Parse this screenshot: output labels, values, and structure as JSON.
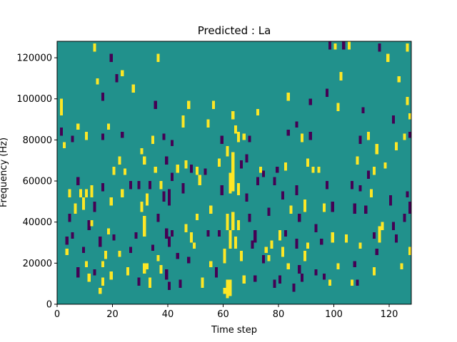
{
  "chart_data": {
    "type": "heatmap",
    "title": "Predicted : La",
    "xlabel": "Time step",
    "ylabel": "Frequency (Hz)",
    "xlim": [
      0,
      128
    ],
    "ylim": [
      0,
      128000
    ],
    "xticks": [
      0,
      20,
      40,
      60,
      80,
      100,
      120
    ],
    "yticks": [
      0,
      20000,
      40000,
      60000,
      80000,
      100000,
      120000
    ],
    "x_tick_labels": [
      "0",
      "20",
      "40",
      "60",
      "80",
      "100",
      "120"
    ],
    "y_tick_labels": [
      "0",
      "20000",
      "40000",
      "60000",
      "80000",
      "100000",
      "120000"
    ],
    "grid": false,
    "colormap": "viridis",
    "colors": {
      "low": "#440154",
      "mid": "#21918c",
      "high": "#fde725"
    },
    "background_value": 0,
    "value_levels": [
      -1,
      0,
      1
    ],
    "n_time_steps": 128,
    "n_freq_bins": 128,
    "bin_width_hz": 1000,
    "cells_note": "Listed cells are [time_step, frequency_bin_start, n_bins, value]; all other cells have the background value 0.",
    "cells": [
      [
        1,
        92,
        8,
        1
      ],
      [
        1,
        82,
        4,
        -1
      ],
      [
        2,
        76,
        3,
        1
      ],
      [
        3,
        29,
        4,
        -1
      ],
      [
        3,
        24,
        3,
        1
      ],
      [
        4,
        52,
        4,
        1
      ],
      [
        4,
        40,
        4,
        -1
      ],
      [
        5,
        79,
        3,
        -1
      ],
      [
        5,
        32,
        3,
        -1
      ],
      [
        6,
        44,
        5,
        1
      ],
      [
        7,
        85,
        3,
        1
      ],
      [
        7,
        58,
        4,
        -1
      ],
      [
        7,
        13,
        5,
        -1
      ],
      [
        8,
        52,
        4,
        1
      ],
      [
        9,
        46,
        6,
        1
      ],
      [
        9,
        25,
        3,
        -1
      ],
      [
        10,
        80,
        4,
        1
      ],
      [
        10,
        52,
        4,
        1
      ],
      [
        10,
        18,
        3,
        1
      ],
      [
        11,
        36,
        5,
        -1
      ],
      [
        11,
        11,
        4,
        1
      ],
      [
        12,
        52,
        6,
        1
      ],
      [
        12,
        38,
        3,
        1
      ],
      [
        13,
        123,
        4,
        1
      ],
      [
        13,
        45,
        5,
        -1
      ],
      [
        13,
        14,
        3,
        -1
      ],
      [
        14,
        107,
        3,
        1
      ],
      [
        15,
        28,
        5,
        -1
      ],
      [
        15,
        5,
        3,
        1
      ],
      [
        16,
        99,
        4,
        -1
      ],
      [
        16,
        80,
        3,
        -1
      ],
      [
        16,
        55,
        4,
        -1
      ],
      [
        16,
        18,
        3,
        1
      ],
      [
        16,
        9,
        4,
        1
      ],
      [
        17,
        22,
        4,
        1
      ],
      [
        18,
        85,
        3,
        1
      ],
      [
        18,
        34,
        3,
        1
      ],
      [
        19,
        118,
        4,
        -1
      ],
      [
        19,
        48,
        4,
        1
      ],
      [
        19,
        12,
        4,
        1
      ],
      [
        20,
        63,
        4,
        1
      ],
      [
        20,
        31,
        3,
        -1
      ],
      [
        21,
        108,
        4,
        -1
      ],
      [
        22,
        68,
        4,
        1
      ],
      [
        22,
        23,
        3,
        1
      ],
      [
        23,
        111,
        3,
        1
      ],
      [
        23,
        81,
        3,
        -1
      ],
      [
        23,
        52,
        4,
        1
      ],
      [
        24,
        63,
        3,
        1
      ],
      [
        25,
        14,
        4,
        1
      ],
      [
        26,
        56,
        4,
        -1
      ],
      [
        26,
        25,
        3,
        -1
      ],
      [
        27,
        103,
        4,
        1
      ],
      [
        28,
        32,
        3,
        -1
      ],
      [
        29,
        56,
        4,
        -1
      ],
      [
        29,
        9,
        4,
        -1
      ],
      [
        30,
        73,
        3,
        1
      ],
      [
        30,
        45,
        5,
        1
      ],
      [
        31,
        68,
        4,
        1
      ],
      [
        31,
        33,
        10,
        1
      ],
      [
        31,
        15,
        5,
        1
      ],
      [
        32,
        48,
        6,
        1
      ],
      [
        32,
        17,
        3,
        1
      ],
      [
        33,
        8,
        5,
        1
      ],
      [
        33,
        56,
        4,
        -1
      ],
      [
        34,
        78,
        4,
        1
      ],
      [
        34,
        26,
        3,
        -1
      ],
      [
        35,
        95,
        4,
        -1
      ],
      [
        35,
        64,
        3,
        1
      ],
      [
        36,
        40,
        4,
        -1
      ],
      [
        36,
        21,
        3,
        1
      ],
      [
        36,
        118,
        4,
        1
      ],
      [
        37,
        56,
        4,
        1
      ],
      [
        37,
        15,
        4,
        1
      ],
      [
        38,
        80,
        3,
        -1
      ],
      [
        38,
        50,
        5,
        -1
      ],
      [
        39,
        68,
        4,
        -1
      ],
      [
        39,
        32,
        5,
        -1
      ],
      [
        39,
        12,
        5,
        -1
      ],
      [
        40,
        48,
        8,
        -1
      ],
      [
        40,
        28,
        5,
        -1
      ],
      [
        40,
        7,
        4,
        -1
      ],
      [
        41,
        60,
        4,
        -1
      ],
      [
        41,
        77,
        3,
        -1
      ],
      [
        41,
        33,
        3,
        -1
      ],
      [
        43,
        64,
        4,
        1
      ],
      [
        43,
        22,
        3,
        -1
      ],
      [
        44,
        8,
        4,
        -1
      ],
      [
        45,
        86,
        6,
        1
      ],
      [
        45,
        54,
        5,
        -1
      ],
      [
        46,
        66,
        4,
        1
      ],
      [
        46,
        35,
        4,
        1
      ],
      [
        47,
        95,
        4,
        1
      ],
      [
        47,
        20,
        3,
        -1
      ],
      [
        48,
        64,
        4,
        -1
      ],
      [
        48,
        30,
        5,
        1
      ],
      [
        49,
        27,
        3,
        1
      ],
      [
        50,
        63,
        4,
        1
      ],
      [
        50,
        41,
        3,
        1
      ],
      [
        51,
        58,
        5,
        1
      ],
      [
        52,
        8,
        5,
        1
      ],
      [
        53,
        63,
        3,
        -1
      ],
      [
        54,
        86,
        4,
        1
      ],
      [
        54,
        33,
        3,
        -1
      ],
      [
        55,
        44,
        4,
        1
      ],
      [
        55,
        18,
        3,
        1
      ],
      [
        56,
        95,
        4,
        1
      ],
      [
        57,
        13,
        5,
        -1
      ],
      [
        58,
        67,
        4,
        1
      ],
      [
        58,
        33,
        3,
        -1
      ],
      [
        59,
        78,
        4,
        -1
      ],
      [
        59,
        53,
        5,
        -1
      ],
      [
        60,
        20,
        7,
        1
      ],
      [
        60,
        5,
        3,
        1
      ],
      [
        61,
        72,
        5,
        1
      ],
      [
        61,
        36,
        8,
        1
      ],
      [
        61,
        3,
        9,
        1
      ],
      [
        62,
        54,
        10,
        1
      ],
      [
        62,
        27,
        9,
        1
      ],
      [
        62,
        4,
        8,
        1
      ],
      [
        63,
        90,
        4,
        1
      ],
      [
        63,
        36,
        9,
        1
      ],
      [
        63,
        55,
        12,
        1
      ],
      [
        63,
        66,
        8,
        1
      ],
      [
        64,
        83,
        4,
        1
      ],
      [
        64,
        27,
        6,
        1
      ],
      [
        65,
        79,
        5,
        1
      ],
      [
        65,
        53,
        6,
        1
      ],
      [
        65,
        36,
        5,
        1
      ],
      [
        66,
        66,
        4,
        -1
      ],
      [
        66,
        21,
        5,
        1
      ],
      [
        67,
        80,
        3,
        1
      ],
      [
        67,
        10,
        4,
        1
      ],
      [
        68,
        69,
        4,
        -1
      ],
      [
        68,
        50,
        4,
        -1
      ],
      [
        69,
        79,
        3,
        -1
      ],
      [
        69,
        40,
        4,
        -1
      ],
      [
        70,
        27,
        4,
        -1
      ],
      [
        71,
        30,
        6,
        -1
      ],
      [
        71,
        11,
        3,
        -1
      ],
      [
        72,
        58,
        4,
        -1
      ],
      [
        72,
        92,
        3,
        1
      ],
      [
        73,
        64,
        3,
        1
      ],
      [
        74,
        62,
        3,
        -1
      ],
      [
        74,
        20,
        4,
        -1
      ],
      [
        75,
        25,
        3,
        1
      ],
      [
        76,
        43,
        4,
        -1
      ],
      [
        76,
        21,
        3,
        1
      ],
      [
        77,
        27,
        4,
        1
      ],
      [
        78,
        58,
        4,
        -1
      ],
      [
        78,
        8,
        4,
        -1
      ],
      [
        79,
        64,
        3,
        -1
      ],
      [
        80,
        31,
        5,
        1
      ],
      [
        80,
        10,
        4,
        -1
      ],
      [
        81,
        51,
        4,
        -1
      ],
      [
        81,
        23,
        5,
        1
      ],
      [
        82,
        65,
        4,
        1
      ],
      [
        82,
        33,
        3,
        -1
      ],
      [
        83,
        99,
        4,
        1
      ],
      [
        83,
        82,
        3,
        -1
      ],
      [
        83,
        17,
        3,
        1
      ],
      [
        84,
        44,
        4,
        1
      ],
      [
        85,
        6,
        4,
        -1
      ],
      [
        86,
        86,
        3,
        -1
      ],
      [
        86,
        53,
        5,
        -1
      ],
      [
        86,
        27,
        5,
        -1
      ],
      [
        87,
        15,
        4,
        -1
      ],
      [
        87,
        40,
        4,
        -1
      ],
      [
        88,
        11,
        4,
        -1
      ],
      [
        88,
        79,
        4,
        1
      ],
      [
        89,
        21,
        5,
        1
      ],
      [
        89,
        45,
        6,
        1
      ],
      [
        90,
        67,
        4,
        1
      ],
      [
        90,
        27,
        3,
        1
      ],
      [
        91,
        97,
        3,
        -1
      ],
      [
        91,
        80,
        4,
        -1
      ],
      [
        92,
        64,
        3,
        1
      ],
      [
        93,
        35,
        4,
        -1
      ],
      [
        93,
        14,
        3,
        -1
      ],
      [
        94,
        64,
        3,
        1
      ],
      [
        95,
        29,
        3,
        -1
      ],
      [
        96,
        45,
        4,
        1
      ],
      [
        96,
        12,
        3,
        -1
      ],
      [
        97,
        101,
        4,
        -1
      ],
      [
        97,
        56,
        4,
        -1
      ],
      [
        98,
        124,
        4,
        -1
      ],
      [
        98,
        9,
        3,
        1
      ],
      [
        99,
        30,
        5,
        1
      ],
      [
        99,
        45,
        5,
        -1
      ],
      [
        100,
        124,
        3,
        1
      ],
      [
        101,
        94,
        4,
        1
      ],
      [
        101,
        17,
        3,
        1
      ],
      [
        102,
        109,
        4,
        1
      ],
      [
        103,
        124,
        4,
        -1
      ],
      [
        104,
        30,
        4,
        1
      ],
      [
        105,
        124,
        4,
        1
      ],
      [
        106,
        56,
        4,
        -1
      ],
      [
        106,
        9,
        3,
        1
      ],
      [
        107,
        44,
        5,
        -1
      ],
      [
        107,
        18,
        3,
        -1
      ],
      [
        108,
        68,
        4,
        1
      ],
      [
        108,
        9,
        3,
        -1
      ],
      [
        109,
        78,
        4,
        -1
      ],
      [
        109,
        27,
        3,
        1
      ],
      [
        109,
        55,
        3,
        -1
      ],
      [
        110,
        93,
        3,
        -1
      ],
      [
        111,
        44,
        4,
        -1
      ],
      [
        112,
        80,
        4,
        1
      ],
      [
        112,
        61,
        4,
        -1
      ],
      [
        113,
        52,
        4,
        1
      ],
      [
        114,
        63,
        4,
        1
      ],
      [
        114,
        32,
        3,
        -1
      ],
      [
        114,
        14,
        4,
        1
      ],
      [
        115,
        73,
        5,
        1
      ],
      [
        115,
        24,
        3,
        -1
      ],
      [
        116,
        30,
        8,
        1
      ],
      [
        116,
        123,
        4,
        -1
      ],
      [
        117,
        36,
        4,
        1
      ],
      [
        118,
        66,
        3,
        1
      ],
      [
        119,
        118,
        4,
        1
      ],
      [
        120,
        48,
        5,
        -1
      ],
      [
        121,
        88,
        4,
        -1
      ],
      [
        121,
        36,
        4,
        -1
      ],
      [
        122,
        30,
        4,
        -1
      ],
      [
        122,
        75,
        4,
        1
      ],
      [
        123,
        108,
        3,
        1
      ],
      [
        124,
        17,
        3,
        1
      ],
      [
        125,
        80,
        3,
        1
      ],
      [
        125,
        40,
        4,
        -1
      ],
      [
        126,
        123,
        4,
        1
      ],
      [
        126,
        52,
        3,
        -1
      ],
      [
        126,
        97,
        4,
        1
      ],
      [
        127,
        44,
        6,
        -1
      ],
      [
        127,
        90,
        3,
        1
      ],
      [
        127,
        24,
        4,
        1
      ],
      [
        127,
        81,
        3,
        -1
      ]
    ]
  }
}
